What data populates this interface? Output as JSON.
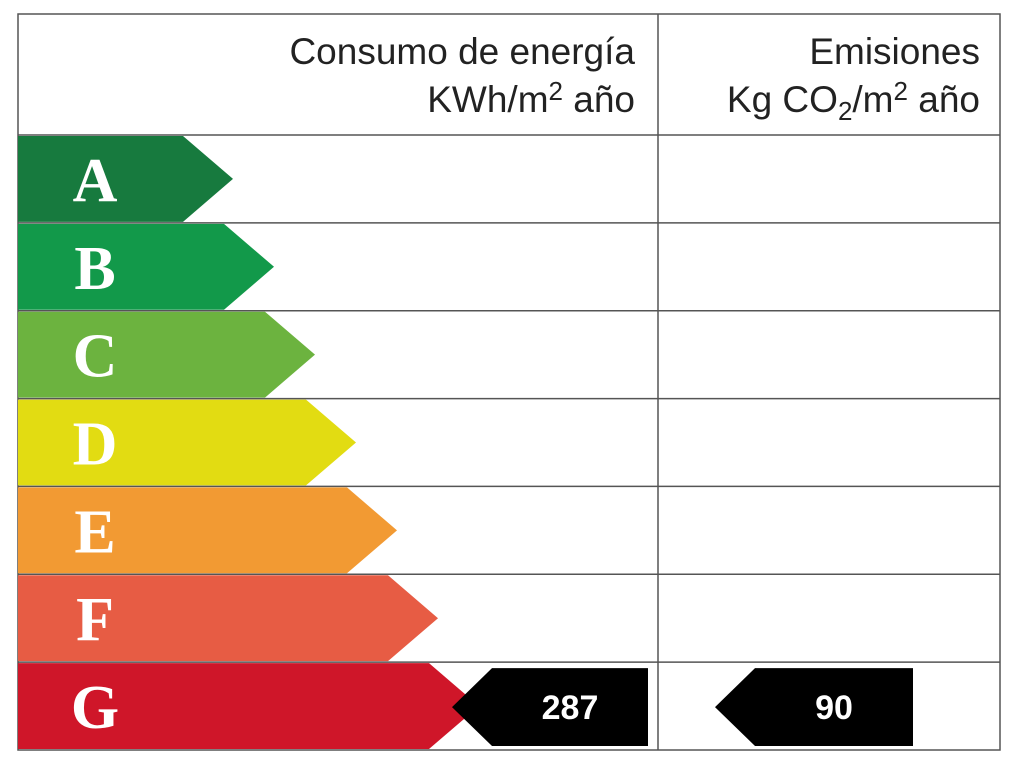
{
  "header": {
    "energy": {
      "title": "Consumo de energía",
      "unit": [
        "KWh/m",
        "2",
        " año"
      ]
    },
    "emissions": {
      "title": "Emisiones",
      "unit": [
        "Kg CO",
        "2",
        "/m",
        "2",
        " año"
      ]
    }
  },
  "rows": [
    {
      "label": "A",
      "color": "#177a3e"
    },
    {
      "label": "B",
      "color": "#12994a"
    },
    {
      "label": "C",
      "color": "#6cb33f"
    },
    {
      "label": "D",
      "color": "#e2dc12"
    },
    {
      "label": "E",
      "color": "#f29a33"
    },
    {
      "label": "F",
      "color": "#e75c44"
    },
    {
      "label": "G",
      "color": "#cf1629"
    }
  ],
  "rating": {
    "energy": {
      "class": "G",
      "value": 287
    },
    "emissions": {
      "class": "G",
      "value": 90
    }
  }
}
